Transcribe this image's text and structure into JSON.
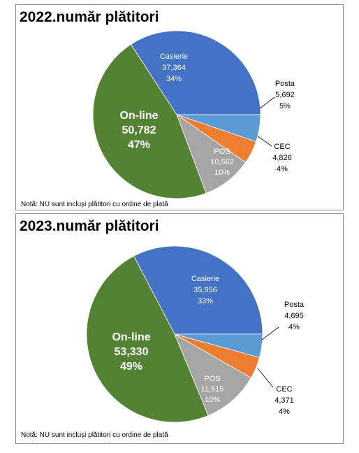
{
  "chart_data": [
    {
      "type": "pie",
      "title": "2022.număr plătitori",
      "note": "Notă: NU sunt incluși plătitori cu ordine de plată",
      "slices": [
        {
          "label": "Casierie",
          "value": 37364,
          "value_label": "37,364",
          "percent": "34%",
          "color": "#4472C4"
        },
        {
          "label": "Posta",
          "value": 5692,
          "value_label": "5,692",
          "percent": "5%",
          "color": "#5B9BD5"
        },
        {
          "label": "CEC",
          "value": 4826,
          "value_label": "4,826",
          "percent": "4%",
          "color": "#ED7D31"
        },
        {
          "label": "POS",
          "value": 10562,
          "value_label": "10,562",
          "percent": "10%",
          "color": "#A5A5A5"
        },
        {
          "label": "On-line",
          "value": 50782,
          "value_label": "50,782",
          "percent": "47%",
          "color": "#548235"
        }
      ]
    },
    {
      "type": "pie",
      "title": "2023.număr plătitori",
      "note": "Notă: NU sunt incluși plătitori cu ordine de plată",
      "slices": [
        {
          "label": "Casierie",
          "value": 35856,
          "value_label": "35,856",
          "percent": "33%",
          "color": "#4472C4"
        },
        {
          "label": "Posta",
          "value": 4695,
          "value_label": "4,695",
          "percent": "4%",
          "color": "#5B9BD5"
        },
        {
          "label": "CEC",
          "value": 4371,
          "value_label": "4,371",
          "percent": "4%",
          "color": "#ED7D31"
        },
        {
          "label": "POS",
          "value": 11515,
          "value_label": "11,515",
          "percent": "10%",
          "color": "#A5A5A5"
        },
        {
          "label": "On-line",
          "value": 53330,
          "value_label": "53,330",
          "percent": "49%",
          "color": "#548235"
        }
      ]
    }
  ]
}
